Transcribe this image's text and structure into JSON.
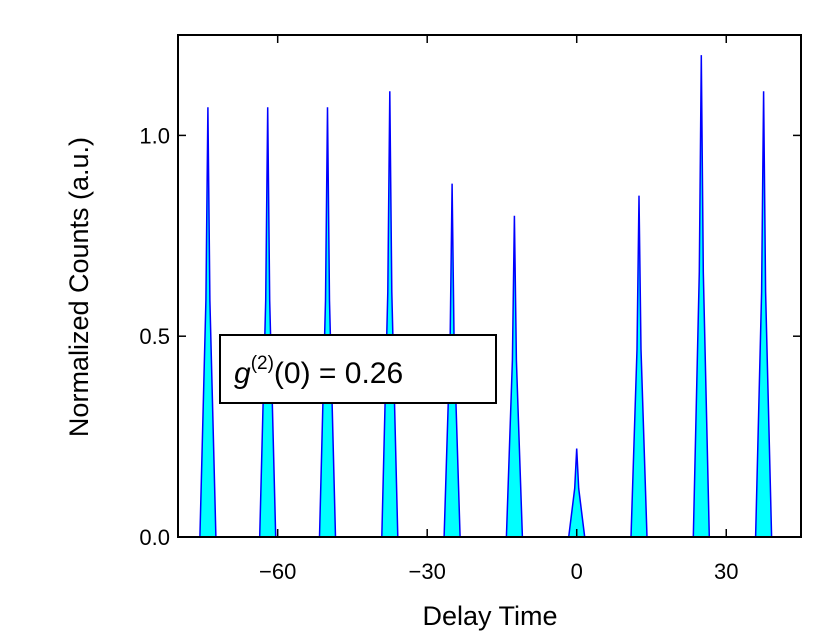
{
  "chart_data": {
    "type": "histogram",
    "title": "",
    "xlabel": "Delay Time",
    "ylabel": "Normalized Counts (a.u.)",
    "xlim": [
      -80,
      45
    ],
    "ylim": [
      0,
      1.25
    ],
    "x_ticks": [
      {
        "value": -60,
        "label": "−60"
      },
      {
        "value": -30,
        "label": "−30"
      },
      {
        "value": 0,
        "label": "0"
      },
      {
        "value": 30,
        "label": "30"
      }
    ],
    "y_ticks": [
      {
        "value": 0,
        "label": "0.0"
      },
      {
        "value": 0.5,
        "label": "0.5"
      },
      {
        "value": 1.0,
        "label": "1.0"
      }
    ],
    "fill_color": "#00ffff",
    "line_color": "#0000ff",
    "grid": false,
    "peaks": [
      {
        "center": -74.0,
        "height": 1.07
      },
      {
        "center": -62.0,
        "height": 1.07
      },
      {
        "center": -50.0,
        "height": 1.07
      },
      {
        "center": -37.5,
        "height": 1.11
      },
      {
        "center": -25.0,
        "height": 0.88
      },
      {
        "center": -12.5,
        "height": 0.8
      },
      {
        "center": 0.0,
        "height": 0.22
      },
      {
        "center": 12.5,
        "height": 0.85
      },
      {
        "center": 25.0,
        "height": 1.2
      },
      {
        "center": 37.5,
        "height": 1.11
      }
    ],
    "annotation": {
      "prefix": "g",
      "superscript": "(2)",
      "suffix": "(0) = 0.26"
    }
  }
}
